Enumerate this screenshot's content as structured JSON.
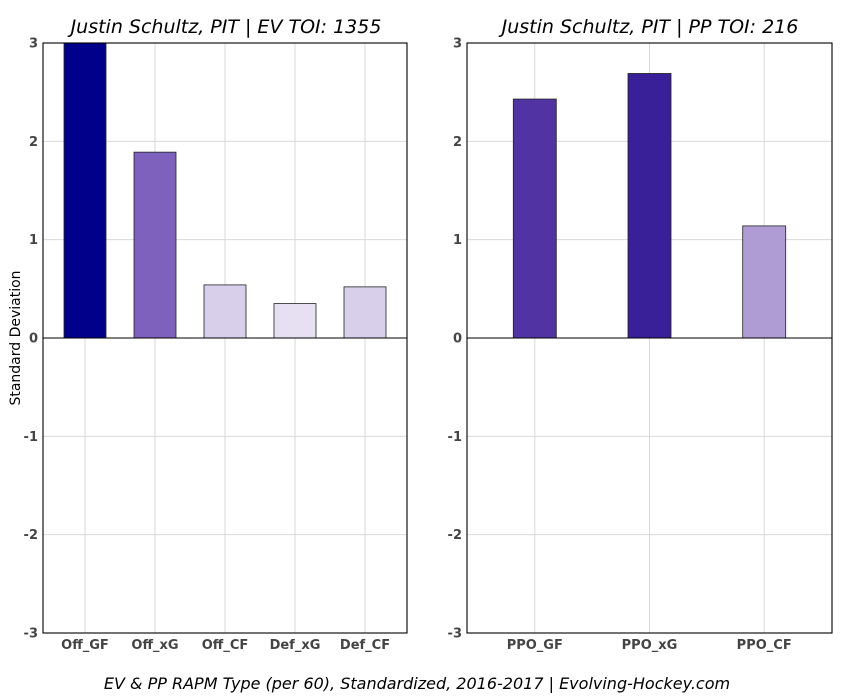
{
  "chart_data": [
    {
      "type": "bar",
      "title": "Justin Schultz, PIT  |  EV TOI: 1355",
      "ylabel": "Standard Deviation",
      "ylim": [
        -3,
        3
      ],
      "yticks": [
        -3,
        -2,
        -1,
        0,
        1,
        2,
        3
      ],
      "grid": true,
      "categories": [
        "Off_GF",
        "Off_xG",
        "Off_CF",
        "Def_xG",
        "Def_CF"
      ],
      "values": [
        3.0,
        1.89,
        0.54,
        0.35,
        0.52
      ],
      "colors": [
        "#00008b",
        "#7e60bd",
        "#d8cfea",
        "#e6e0f2",
        "#d8cfea"
      ]
    },
    {
      "type": "bar",
      "title": "Justin Schultz, PIT  |  PP TOI: 216",
      "ylabel": "",
      "ylim": [
        -3,
        3
      ],
      "yticks": [
        -3,
        -2,
        -1,
        0,
        1,
        2,
        3
      ],
      "grid": true,
      "categories": [
        "PPO_GF",
        "PPO_xG",
        "PPO_CF"
      ],
      "values": [
        2.43,
        2.69,
        1.14
      ],
      "colors": [
        "#5233a3",
        "#391f98",
        "#b09cd5"
      ]
    }
  ],
  "caption": "EV & PP RAPM Type (per 60), Standardized, 2016-2017    |    Evolving-Hockey.com"
}
